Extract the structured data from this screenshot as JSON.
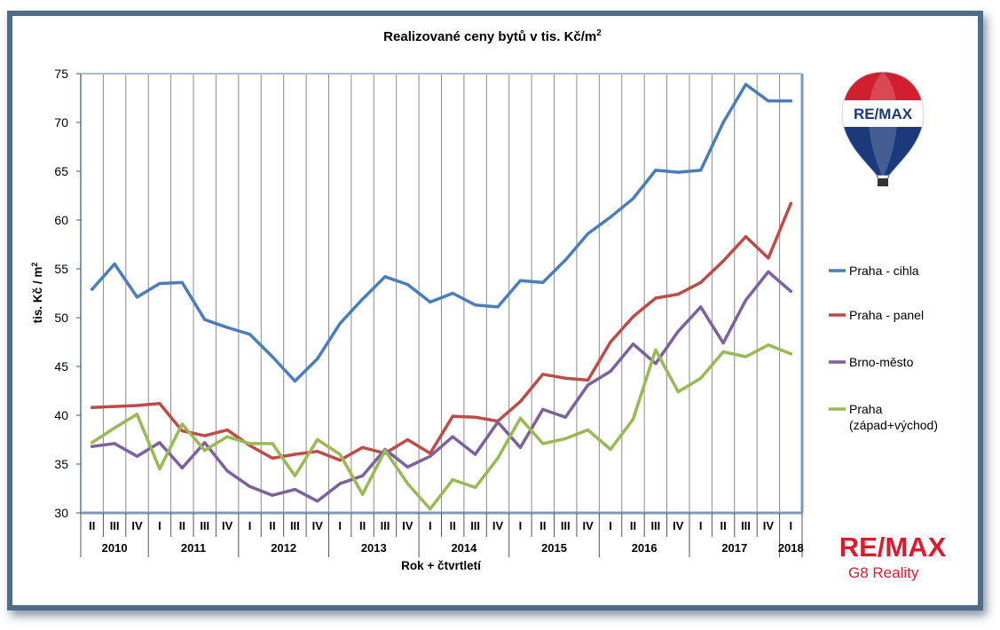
{
  "chart_data": {
    "type": "line",
    "title": "Realizované ceny bytů v tis. Kč/m",
    "title_superscript": "2",
    "xlabel": "Rok + čtvrtletí",
    "ylabel": "tis. Kč / m",
    "ylabel_superscript": "2",
    "ylim": [
      30,
      75
    ],
    "yticks": [
      30,
      35,
      40,
      45,
      50,
      55,
      60,
      65,
      70,
      75
    ],
    "grid": "vertical",
    "legend_position": "right",
    "quarters": [
      "II",
      "III",
      "IV",
      "I",
      "II",
      "III",
      "IV",
      "I",
      "II",
      "III",
      "IV",
      "I",
      "II",
      "III",
      "IV",
      "I",
      "II",
      "III",
      "IV",
      "I",
      "II",
      "III",
      "IV",
      "I",
      "II",
      "III",
      "IV",
      "I",
      "II",
      "III",
      "IV",
      "I"
    ],
    "years": [
      {
        "label": "2010",
        "start": 0,
        "end": 2
      },
      {
        "label": "2011",
        "start": 3,
        "end": 6
      },
      {
        "label": "2012",
        "start": 7,
        "end": 10
      },
      {
        "label": "2013",
        "start": 11,
        "end": 14
      },
      {
        "label": "2014",
        "start": 15,
        "end": 18
      },
      {
        "label": "2015",
        "start": 19,
        "end": 22
      },
      {
        "label": "2016",
        "start": 23,
        "end": 26
      },
      {
        "label": "2017",
        "start": 27,
        "end": 30
      },
      {
        "label": "2018",
        "start": 31,
        "end": 31
      }
    ],
    "series": [
      {
        "name": "Praha - cihla",
        "color": "#4a7ebb",
        "values": [
          52.9,
          55.5,
          52.1,
          53.5,
          53.6,
          49.8,
          49.0,
          48.3,
          46.0,
          43.5,
          45.8,
          49.4,
          51.9,
          54.2,
          53.4,
          51.6,
          52.5,
          51.3,
          51.1,
          53.8,
          53.6,
          55.9,
          58.6,
          60.3,
          62.2,
          65.1,
          64.9,
          65.1,
          70.0,
          73.9,
          72.2,
          72.2
        ]
      },
      {
        "name": "Praha - panel",
        "color": "#be4b48",
        "values": [
          40.8,
          40.9,
          41.0,
          41.2,
          38.4,
          37.9,
          38.5,
          36.9,
          35.6,
          36.0,
          36.3,
          35.4,
          36.7,
          36.1,
          37.5,
          36.1,
          39.9,
          39.8,
          39.4,
          41.4,
          44.2,
          43.8,
          43.6,
          47.5,
          50.1,
          52.0,
          52.4,
          53.6,
          55.8,
          58.3,
          56.1,
          61.7
        ]
      },
      {
        "name": "Brno-město",
        "color": "#7d60a0",
        "values": [
          36.8,
          37.1,
          35.8,
          37.2,
          34.6,
          37.2,
          34.3,
          32.7,
          31.8,
          32.4,
          31.2,
          33.0,
          33.8,
          36.5,
          34.7,
          35.8,
          37.8,
          36.0,
          39.3,
          36.7,
          40.6,
          39.8,
          43.1,
          44.5,
          47.3,
          45.3,
          48.6,
          51.1,
          47.4,
          51.8,
          54.7,
          52.7
        ]
      },
      {
        "name": "Praha (západ+východ)",
        "color": "#98b954",
        "values": [
          37.2,
          38.7,
          40.1,
          34.5,
          39.1,
          36.4,
          37.8,
          37.1,
          37.1,
          33.8,
          37.5,
          36.0,
          31.9,
          36.4,
          33.0,
          30.4,
          33.4,
          32.6,
          35.6,
          39.7,
          37.1,
          37.6,
          38.5,
          36.5,
          39.6,
          46.7,
          42.4,
          43.8,
          46.5,
          46.0,
          47.2,
          46.3
        ]
      }
    ],
    "legend_labels": [
      {
        "lines": [
          "Praha - cihla"
        ]
      },
      {
        "lines": [
          "Praha - panel"
        ]
      },
      {
        "lines": [
          "Brno-město"
        ]
      },
      {
        "lines": [
          "Praha",
          "(západ+východ)"
        ]
      }
    ]
  },
  "logo_balloon": {
    "text": "RE/MAX"
  },
  "logo_brand": {
    "text": "RE/MAX",
    "subtitle": "G8 Reality",
    "color": "#dc1c2e"
  }
}
